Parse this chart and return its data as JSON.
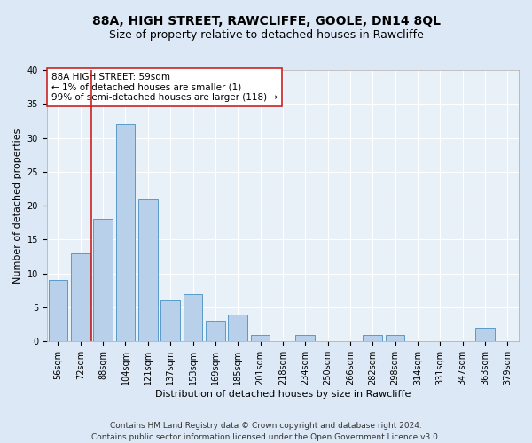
{
  "title": "88A, HIGH STREET, RAWCLIFFE, GOOLE, DN14 8QL",
  "subtitle": "Size of property relative to detached houses in Rawcliffe",
  "xlabel": "Distribution of detached houses by size in Rawcliffe",
  "ylabel": "Number of detached properties",
  "categories": [
    "56sqm",
    "72sqm",
    "88sqm",
    "104sqm",
    "121sqm",
    "137sqm",
    "153sqm",
    "169sqm",
    "185sqm",
    "201sqm",
    "218sqm",
    "234sqm",
    "250sqm",
    "266sqm",
    "282sqm",
    "298sqm",
    "314sqm",
    "331sqm",
    "347sqm",
    "363sqm",
    "379sqm"
  ],
  "values": [
    9,
    13,
    18,
    32,
    21,
    6,
    7,
    3,
    4,
    1,
    0,
    1,
    0,
    0,
    1,
    1,
    0,
    0,
    0,
    2,
    0
  ],
  "bar_color": "#b8d0ea",
  "bar_edgecolor": "#5a9ac8",
  "highlight_color": "#cc2222",
  "annotation_text": "88A HIGH STREET: 59sqm\n← 1% of detached houses are smaller (1)\n99% of semi-detached houses are larger (118) →",
  "ylim": [
    0,
    40
  ],
  "yticks": [
    0,
    5,
    10,
    15,
    20,
    25,
    30,
    35,
    40
  ],
  "background_color": "#dce8f5",
  "plot_bg_color": "#e8f0f8",
  "grid_color": "#ffffff",
  "footer_line1": "Contains HM Land Registry data © Crown copyright and database right 2024.",
  "footer_line2": "Contains public sector information licensed under the Open Government Licence v3.0.",
  "title_fontsize": 10,
  "subtitle_fontsize": 9,
  "axis_label_fontsize": 8,
  "tick_fontsize": 7,
  "annotation_fontsize": 7.5,
  "footer_fontsize": 6.5
}
